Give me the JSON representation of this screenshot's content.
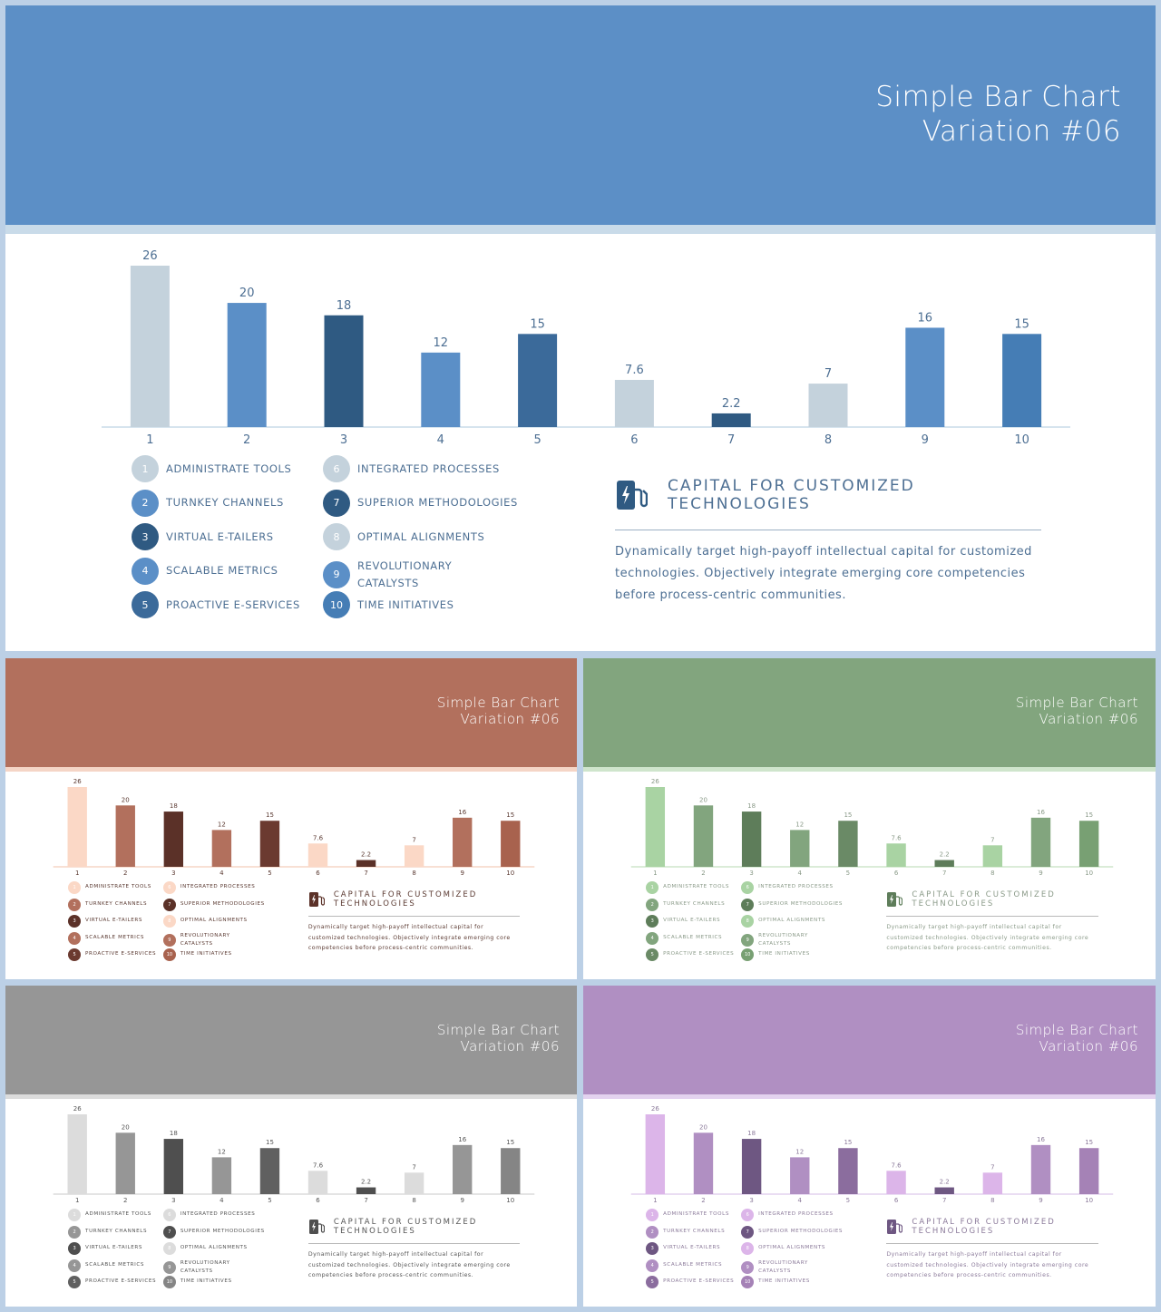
{
  "slide_title_line1": "Simple Bar Chart",
  "slide_title_line2": "Variation #06",
  "legend_items": [
    {
      "num": "1",
      "label": "ADMINISTRATE TOOLS"
    },
    {
      "num": "2",
      "label": "TURNKEY CHANNELS"
    },
    {
      "num": "3",
      "label": "VIRTUAL E-TAILERS"
    },
    {
      "num": "4",
      "label": "SCALABLE METRICS"
    },
    {
      "num": "5",
      "label": "PROACTIVE E-SERVICES"
    },
    {
      "num": "6",
      "label": "INTEGRATED PROCESSES"
    },
    {
      "num": "7",
      "label": "SUPERIOR METHODOLOGIES"
    },
    {
      "num": "8",
      "label": "OPTIMAL ALIGNMENTS"
    },
    {
      "num": "9",
      "label": "REVOLUTIONARY\nCATALYSTS"
    },
    {
      "num": "10",
      "label": "TIME INITIATIVES"
    }
  ],
  "info": {
    "icon": "ev-charger-icon",
    "title": "CAPITAL FOR CUSTOMIZED TECHNOLOGIES",
    "text": "Dynamically target high-payoff intellectual capital for customized technologies. Objectively integrate emerging core competencies before process-centric communities."
  },
  "chart_data": {
    "type": "bar",
    "categories": [
      "1",
      "2",
      "3",
      "4",
      "5",
      "6",
      "7",
      "8",
      "9",
      "10"
    ],
    "values": [
      26,
      20,
      18,
      12,
      15,
      7.6,
      2.2,
      7,
      16,
      15
    ],
    "value_labels": [
      "26",
      "20",
      "18",
      "12",
      "15",
      "7.6",
      "2.2",
      "7",
      "16",
      "15"
    ],
    "ylim": [
      0,
      26
    ],
    "grid": false
  },
  "themes": [
    {
      "name": "blue",
      "header": "#5c8fc6",
      "rule": "#c9dbe9",
      "text": "#4d6f93",
      "bars": [
        "#c4d2dc",
        "#5b8fc7",
        "#2f5a82",
        "#5b8fc7",
        "#3b6a9a",
        "#c4d2dc",
        "#2f5a82",
        "#c4d2dc",
        "#5b8fc7",
        "#457db5"
      ]
    },
    {
      "name": "rust",
      "header": "#b2705d",
      "rule": "#f5d5c6",
      "text": "#5b3a32",
      "bars": [
        "#fbd8c6",
        "#b2705d",
        "#5b3128",
        "#b2705d",
        "#6b3a30",
        "#fbd8c6",
        "#5b3128",
        "#fbd8c6",
        "#b2705d",
        "#a8624e"
      ]
    },
    {
      "name": "green",
      "header": "#82a57e",
      "rule": "#cfe5cc",
      "text": "#8a9a88",
      "bars": [
        "#a9d3a3",
        "#82a57e",
        "#5e7d5a",
        "#82a57e",
        "#6a8a66",
        "#a9d3a3",
        "#5e7d5a",
        "#a9d3a3",
        "#82a57e",
        "#78a073"
      ]
    },
    {
      "name": "gray",
      "header": "#969696",
      "rule": "#dcdcdc",
      "text": "#555555",
      "bars": [
        "#dcdcdc",
        "#969696",
        "#4f4f4f",
        "#969696",
        "#606060",
        "#dcdcdc",
        "#4f4f4f",
        "#dcdcdc",
        "#969696",
        "#858585"
      ]
    },
    {
      "name": "purple",
      "header": "#b08fc2",
      "rule": "#e3d2ef",
      "text": "#8b7a9a",
      "bars": [
        "#dcb5e9",
        "#b08fc2",
        "#6e5782",
        "#b08fc2",
        "#8b6d9e",
        "#dcb5e9",
        "#6e5782",
        "#dcb5e9",
        "#b08fc2",
        "#a582b6"
      ]
    }
  ]
}
